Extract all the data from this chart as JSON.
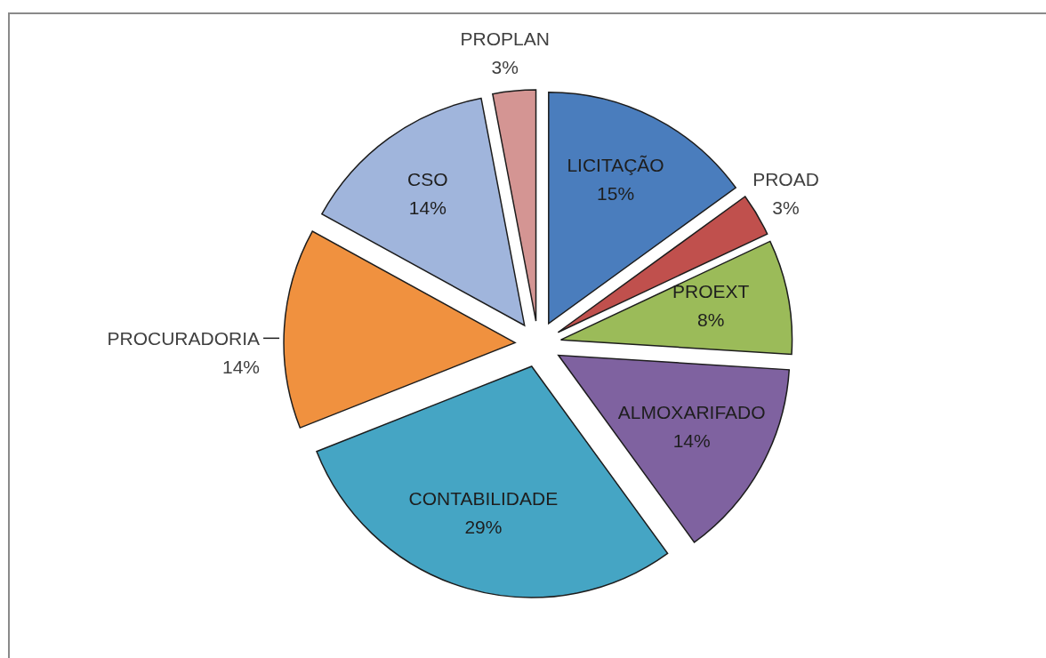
{
  "chart_data": {
    "type": "pie",
    "categories": [
      "LICITAÇÃO",
      "PROAD",
      "PROEXT",
      "ALMOXARIFADO",
      "CONTABILIDADE",
      "PROCURADORIA",
      "CSO",
      "PROPLAN"
    ],
    "values": [
      15,
      3,
      8,
      14,
      29,
      14,
      14,
      3
    ],
    "colors": [
      "#4a7dbd",
      "#c0504d",
      "#9bbb59",
      "#7f62a0",
      "#45a5c4",
      "#f0913f",
      "#a0b5dc",
      "#d49593"
    ],
    "value_labels": [
      "15%",
      "3%",
      "8%",
      "14%",
      "29%",
      "14%",
      "14%",
      "3%"
    ]
  }
}
